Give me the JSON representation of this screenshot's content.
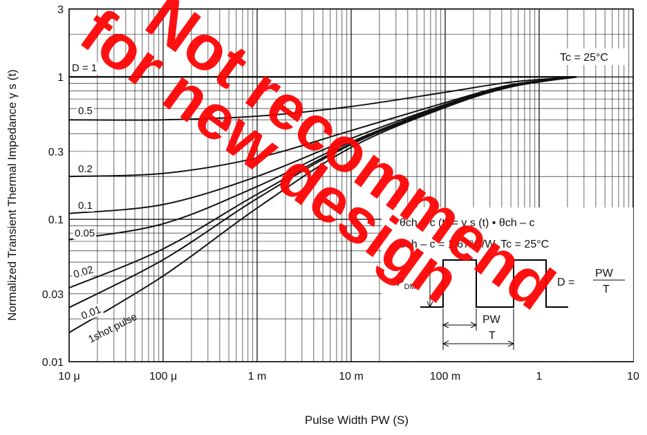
{
  "chart_data": {
    "type": "line",
    "title": "",
    "xlabel": "Pulse Width   PW  (S)",
    "ylabel": "Normalized Transient Thermal Impedance  γ s  (t)",
    "x_scale": "log",
    "y_scale": "log",
    "xlim": [
      1e-05,
      10
    ],
    "ylim": [
      0.01,
      3
    ],
    "grid": true,
    "x_ticks": [
      {
        "value": 1e-05,
        "label": "10 μ"
      },
      {
        "value": 0.0001,
        "label": "100 μ"
      },
      {
        "value": 0.001,
        "label": "1 m"
      },
      {
        "value": 0.01,
        "label": "10 m"
      },
      {
        "value": 0.1,
        "label": "100 m"
      },
      {
        "value": 1,
        "label": "1"
      },
      {
        "value": 10,
        "label": "10"
      }
    ],
    "y_ticks": [
      {
        "value": 0.01,
        "label": "0.01"
      },
      {
        "value": 0.03,
        "label": "0.03"
      },
      {
        "value": 0.1,
        "label": "0.1"
      },
      {
        "value": 0.3,
        "label": "0.3"
      },
      {
        "value": 1,
        "label": "1"
      },
      {
        "value": 3,
        "label": "3"
      }
    ],
    "condition_label": "Tc = 25°C",
    "series": [
      {
        "name": "D = 1",
        "x": [
          1e-05,
          2.5
        ],
        "y": [
          1.0,
          1.0
        ]
      },
      {
        "name": "0.5",
        "x": [
          1e-05,
          0.0001,
          0.001,
          0.01,
          0.1,
          0.5,
          2.5
        ],
        "y": [
          0.5,
          0.5,
          0.53,
          0.62,
          0.78,
          0.92,
          1.0
        ]
      },
      {
        "name": "0.2",
        "x": [
          1e-05,
          0.0001,
          0.001,
          0.01,
          0.1,
          0.5,
          2.5
        ],
        "y": [
          0.2,
          0.21,
          0.27,
          0.42,
          0.66,
          0.88,
          1.0
        ]
      },
      {
        "name": "0.1",
        "x": [
          1e-05,
          0.0001,
          0.001,
          0.01,
          0.1,
          0.5,
          2.5
        ],
        "y": [
          0.11,
          0.127,
          0.2,
          0.37,
          0.64,
          0.87,
          1.0
        ]
      },
      {
        "name": "0.05",
        "x": [
          1e-05,
          0.0001,
          0.001,
          0.01,
          0.1,
          0.5,
          2.5
        ],
        "y": [
          0.072,
          0.093,
          0.17,
          0.35,
          0.63,
          0.865,
          1.0
        ]
      },
      {
        "name": "0.02",
        "x": [
          1e-05,
          0.0001,
          0.001,
          0.01,
          0.1,
          0.5,
          2.5
        ],
        "y": [
          0.033,
          0.062,
          0.15,
          0.34,
          0.62,
          0.86,
          1.0
        ]
      },
      {
        "name": "0.01",
        "x": [
          1e-05,
          0.0001,
          0.001,
          0.01,
          0.1,
          0.5,
          2.5
        ],
        "y": [
          0.024,
          0.052,
          0.14,
          0.335,
          0.615,
          0.855,
          1.0
        ]
      },
      {
        "name": "1shot pulse",
        "x": [
          1e-05,
          0.0001,
          0.001,
          0.01,
          0.1,
          0.5,
          2.5
        ],
        "y": [
          0.016,
          0.04,
          0.12,
          0.32,
          0.61,
          0.85,
          1.0
        ]
      }
    ],
    "inset": {
      "formula": "θch – c (t) = γ s (t) •  θch – c",
      "condition": "θch – c = 1.67°C/W, Tc = 25°C",
      "pdm_label": "P",
      "pdm_sub": "DM",
      "duty_label": "D = ",
      "pw_num": "PW",
      "pw_den": "T",
      "pw_label": "PW",
      "t_label": "T"
    },
    "watermark": [
      "Not recommend",
      "for new design"
    ]
  }
}
